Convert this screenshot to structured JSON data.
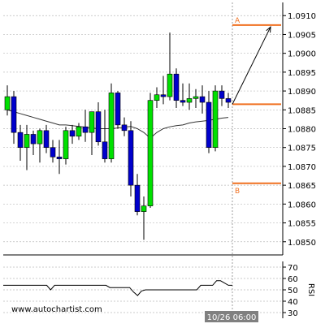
{
  "chart_data": [
    {
      "type": "candlestick",
      "y_axis_ticks": [
        "1.0910",
        "1.0905",
        "1.0900",
        "1.0895",
        "1.0890",
        "1.0885",
        "1.0880",
        "1.0875",
        "1.0870",
        "1.0865",
        "1.0860",
        "1.0855",
        "1.0850"
      ],
      "ylim": [
        1.08465,
        1.09135
      ],
      "grid": true,
      "candles": [
        {
          "o": 1.0885,
          "h": 1.08915,
          "l": 1.08835,
          "c": 1.08885
        },
        {
          "o": 1.08885,
          "h": 1.089,
          "l": 1.0876,
          "c": 1.0879
        },
        {
          "o": 1.0879,
          "h": 1.0881,
          "l": 1.08715,
          "c": 1.0875
        },
        {
          "o": 1.0875,
          "h": 1.0881,
          "l": 1.0869,
          "c": 1.08785
        },
        {
          "o": 1.08785,
          "h": 1.08795,
          "l": 1.0873,
          "c": 1.0876
        },
        {
          "o": 1.0876,
          "h": 1.088,
          "l": 1.0871,
          "c": 1.08795
        },
        {
          "o": 1.08795,
          "h": 1.0881,
          "l": 1.08735,
          "c": 1.0875
        },
        {
          "o": 1.0875,
          "h": 1.0877,
          "l": 1.0871,
          "c": 1.08725
        },
        {
          "o": 1.08725,
          "h": 1.0877,
          "l": 1.0868,
          "c": 1.0872
        },
        {
          "o": 1.0872,
          "h": 1.08805,
          "l": 1.08705,
          "c": 1.08795
        },
        {
          "o": 1.08795,
          "h": 1.0881,
          "l": 1.0876,
          "c": 1.0878
        },
        {
          "o": 1.0878,
          "h": 1.08815,
          "l": 1.0877,
          "c": 1.08805
        },
        {
          "o": 1.08805,
          "h": 1.0885,
          "l": 1.08765,
          "c": 1.0879
        },
        {
          "o": 1.0879,
          "h": 1.08845,
          "l": 1.0873,
          "c": 1.08845
        },
        {
          "o": 1.08845,
          "h": 1.0887,
          "l": 1.08755,
          "c": 1.08765
        },
        {
          "o": 1.08765,
          "h": 1.0885,
          "l": 1.0871,
          "c": 1.0872
        },
        {
          "o": 1.0872,
          "h": 1.0892,
          "l": 1.0871,
          "c": 1.08895
        },
        {
          "o": 1.08895,
          "h": 1.089,
          "l": 1.088,
          "c": 1.0881
        },
        {
          "o": 1.0881,
          "h": 1.0883,
          "l": 1.0878,
          "c": 1.08795
        },
        {
          "o": 1.08795,
          "h": 1.0882,
          "l": 1.0862,
          "c": 1.0865
        },
        {
          "o": 1.0865,
          "h": 1.0868,
          "l": 1.0857,
          "c": 1.0858
        },
        {
          "o": 1.0858,
          "h": 1.0862,
          "l": 1.08505,
          "c": 1.08595
        },
        {
          "o": 1.08595,
          "h": 1.08895,
          "l": 1.0859,
          "c": 1.08875
        },
        {
          "o": 1.08875,
          "h": 1.0891,
          "l": 1.08855,
          "c": 1.0889
        },
        {
          "o": 1.0889,
          "h": 1.0894,
          "l": 1.08865,
          "c": 1.08885
        },
        {
          "o": 1.08885,
          "h": 1.09055,
          "l": 1.08875,
          "c": 1.08945
        },
        {
          "o": 1.08945,
          "h": 1.0896,
          "l": 1.08855,
          "c": 1.08875
        },
        {
          "o": 1.08875,
          "h": 1.0892,
          "l": 1.0886,
          "c": 1.0887
        },
        {
          "o": 1.0887,
          "h": 1.0892,
          "l": 1.0885,
          "c": 1.0888
        },
        {
          "o": 1.0888,
          "h": 1.08905,
          "l": 1.08855,
          "c": 1.08885
        },
        {
          "o": 1.08885,
          "h": 1.08915,
          "l": 1.0884,
          "c": 1.0887
        },
        {
          "o": 1.0887,
          "h": 1.089,
          "l": 1.08735,
          "c": 1.0875
        },
        {
          "o": 1.0875,
          "h": 1.08915,
          "l": 1.0874,
          "c": 1.089
        },
        {
          "o": 1.089,
          "h": 1.08915,
          "l": 1.0886,
          "c": 1.0888
        },
        {
          "o": 1.0888,
          "h": 1.08895,
          "l": 1.08855,
          "c": 1.0887
        }
      ],
      "moving_average": [
        1.0885,
        1.08845,
        1.0884,
        1.08835,
        1.0883,
        1.08825,
        1.0882,
        1.08815,
        1.0881,
        1.0881,
        1.08808,
        1.08806,
        1.08804,
        1.08802,
        1.088,
        1.088,
        1.088,
        1.08802,
        1.08804,
        1.08806,
        1.088,
        1.0879,
        1.08775,
        1.0879,
        1.088,
        1.08805,
        1.08808,
        1.0881,
        1.08815,
        1.08818,
        1.0882,
        1.08822,
        1.08825,
        1.08828,
        1.0883
      ],
      "colors": {
        "bull_body": "#00e000",
        "bear_body": "#0000cc",
        "candle_outline": "#000000",
        "wick": "#000000",
        "grid": "#bbbbbb",
        "level_lines": "#f07020",
        "level_labels": "#f07020",
        "forecast_arrow": "#000000",
        "ma_line": "#333333"
      },
      "levels": {
        "A": {
          "label": "A",
          "value": 1.09075
        },
        "B": {
          "label": "B",
          "value": 1.08655
        },
        "entry": {
          "value": 1.08865
        }
      },
      "forecast_arrow": {
        "from": 1.08865,
        "to": 1.0907
      }
    },
    {
      "type": "line",
      "ylabel": "RSI",
      "y_axis_ticks": [
        "70",
        "60",
        "50",
        "40",
        "30"
      ],
      "ylim": [
        25,
        75
      ],
      "values": [
        54,
        54,
        54,
        54,
        54,
        54,
        54,
        54,
        54,
        54,
        54,
        54,
        50,
        54,
        54,
        54,
        54,
        54,
        54,
        54,
        54,
        54,
        54,
        54,
        54,
        54,
        54,
        52,
        52,
        52,
        52,
        52,
        52,
        48,
        45,
        49,
        50,
        50,
        50,
        50,
        50,
        50,
        50,
        50,
        50,
        50,
        50,
        50,
        50,
        50,
        54,
        54,
        54,
        54,
        58,
        58,
        56,
        54,
        54
      ]
    }
  ],
  "watermark": "www.autochartist.com",
  "time_label": "10/26 06:00"
}
